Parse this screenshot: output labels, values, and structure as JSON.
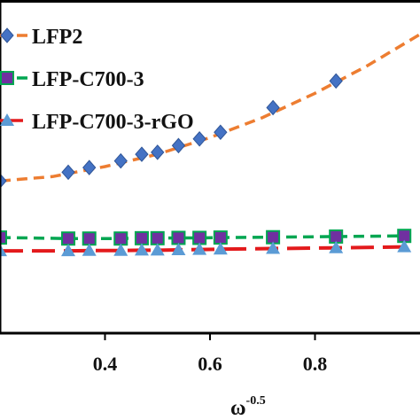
{
  "chart_data": {
    "type": "line",
    "xlabel": "ω",
    "xlabel_superscript": "-0.5",
    "ylabel": "",
    "xlim": [
      0.2,
      1.0
    ],
    "ylim": [
      0,
      100
    ],
    "x_ticks": [
      "0.4",
      "0.6",
      "0.8"
    ],
    "x_tick_values": [
      0.4,
      0.6,
      0.8
    ],
    "grid": false,
    "legend": "top-left",
    "series": [
      {
        "name": "LFP2",
        "line_color": "#ED7D31",
        "marker": "diamond",
        "marker_color": "#4472C4",
        "x": [
          0.2,
          0.33,
          0.37,
          0.43,
          0.47,
          0.5,
          0.54,
          0.58,
          0.62,
          0.72,
          0.84
        ],
        "y": [
          45.7,
          48.3,
          49.7,
          51.7,
          53.7,
          54.3,
          56.3,
          58.3,
          60.3,
          67.7,
          75.7
        ],
        "fit_x": [
          0.2,
          0.3,
          0.4,
          0.5,
          0.6,
          0.7,
          0.8,
          0.9,
          1.0
        ],
        "fit_y": [
          45.7,
          47.0,
          50.0,
          53.7,
          58.7,
          64.7,
          72.0,
          80.3,
          89.7
        ]
      },
      {
        "name": "LFP-C700-3",
        "line_color": "#00A651",
        "marker": "square",
        "marker_color": "#7030A0",
        "x": [
          0.2,
          0.33,
          0.37,
          0.43,
          0.47,
          0.5,
          0.54,
          0.58,
          0.62,
          0.72,
          0.84,
          0.97
        ],
        "y": [
          28.7,
          28.4,
          28.4,
          28.4,
          28.5,
          28.5,
          28.6,
          28.6,
          28.7,
          28.8,
          29.0,
          29.2
        ]
      },
      {
        "name": "LFP-C700-3-rGO",
        "line_color": "#E31A1C",
        "marker": "triangle",
        "marker_color": "#5B9BD5",
        "x": [
          0.2,
          0.33,
          0.37,
          0.43,
          0.47,
          0.5,
          0.54,
          0.58,
          0.62,
          0.72,
          0.84,
          0.97
        ],
        "y": [
          24.7,
          24.7,
          24.8,
          24.8,
          24.9,
          24.9,
          25.0,
          25.1,
          25.2,
          25.4,
          25.6,
          25.9
        ]
      }
    ]
  }
}
